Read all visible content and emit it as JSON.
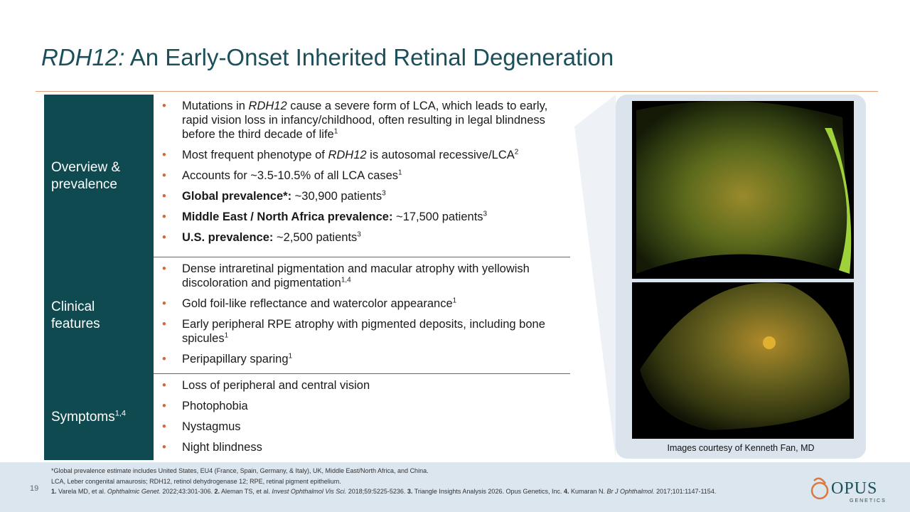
{
  "title": [
    {
      "text": "RDH12:",
      "style": "italic"
    },
    {
      "text": " An Early-Onset Inherited Retinal Degeneration"
    }
  ],
  "table": {
    "rows": [
      {
        "header": [
          {
            "text": "Overview & prevalence"
          }
        ],
        "bullets": [
          [
            {
              "text": "Mutations in "
            },
            {
              "text": "RDH12",
              "style": "italic"
            },
            {
              "text": " cause a severe form of LCA, which leads to early, rapid vision loss in infancy/childhood, often resulting in legal blindness before the third decade of life"
            },
            {
              "text": "1",
              "style": "sup"
            }
          ],
          [
            {
              "text": "Most frequent phenotype of "
            },
            {
              "text": "RDH12",
              "style": "italic"
            },
            {
              "text": " is autosomal recessive/LCA"
            },
            {
              "text": "2",
              "style": "sup"
            }
          ],
          [
            {
              "text": "Accounts for ~3.5-10.5% of all LCA cases"
            },
            {
              "text": "1",
              "style": "sup"
            }
          ],
          [
            {
              "text": "Global prevalence*:",
              "style": "bold"
            },
            {
              "text": " ~30,900 patients"
            },
            {
              "text": "3",
              "style": "sup"
            }
          ],
          [
            {
              "text": "Middle East / North Africa prevalence:",
              "style": "bold"
            },
            {
              "text": " ~17,500 patients"
            },
            {
              "text": "3",
              "style": "sup"
            }
          ],
          [
            {
              "text": "U.S. prevalence:",
              "style": "bold"
            },
            {
              "text": " ~2,500 patients"
            },
            {
              "text": "3",
              "style": "sup"
            }
          ]
        ]
      },
      {
        "header": [
          {
            "text": "Clinical features"
          }
        ],
        "bullets": [
          [
            {
              "text": "Dense intraretinal pigmentation and macular atrophy with yellowish discoloration and pigmentation"
            },
            {
              "text": "1,4",
              "style": "sup"
            }
          ],
          [
            {
              "text": "Gold foil-like reflectance and watercolor appearance"
            },
            {
              "text": "1",
              "style": "sup"
            }
          ],
          [
            {
              "text": "Early peripheral RPE atrophy with pigmented deposits, including bone spicules"
            },
            {
              "text": "1",
              "style": "sup"
            }
          ],
          [
            {
              "text": "Peripapillary sparing"
            },
            {
              "text": "1",
              "style": "sup"
            }
          ]
        ]
      },
      {
        "header": [
          {
            "text": "Symptoms"
          },
          {
            "text": "1,4",
            "style": "sup"
          }
        ],
        "bullets": [
          [
            {
              "text": "Loss of peripheral and central vision"
            }
          ],
          [
            {
              "text": "Photophobia"
            }
          ],
          [
            {
              "text": "Nystagmus"
            }
          ],
          [
            {
              "text": "Night blindness"
            }
          ]
        ]
      }
    ]
  },
  "image_caption": "Images courtesy of Kenneth Fan, MD",
  "footnotes": [
    [
      {
        "text": "*Global prevalence estimate includes United States, EU4 (France, Spain, Germany, & Italy), UK, Middle East/North Africa, and China."
      }
    ],
    [
      {
        "text": "LCA, Leber congenital amaurosis; RDH12, retinol dehydrogenase 12; RPE, retinal pigment epithelium."
      }
    ],
    [
      {
        "text": "1.",
        "style": "bold"
      },
      {
        "text": " Varela MD, et al. "
      },
      {
        "text": "Ophthalmic Genet.",
        "style": "italic"
      },
      {
        "text": " 2022;43:301-306. "
      },
      {
        "text": "2.",
        "style": "bold"
      },
      {
        "text": " Aleman TS, et al. "
      },
      {
        "text": "Invest Ophthalmol Vis Sci.",
        "style": "italic"
      },
      {
        "text": " 2018;59:5225-5236. "
      },
      {
        "text": "3.",
        "style": "bold"
      },
      {
        "text": " Triangle Insights Analysis 2026. Opus Genetics, Inc. "
      },
      {
        "text": "4.",
        "style": "bold"
      },
      {
        "text": " Kumaran N. "
      },
      {
        "text": "Br J Ophthalmol.",
        "style": "italic"
      },
      {
        "text": " 2017;101:1147-1154."
      }
    ]
  ],
  "page_number": "19",
  "logo": {
    "name": "OPUS",
    "tagline": "GENETICS"
  }
}
